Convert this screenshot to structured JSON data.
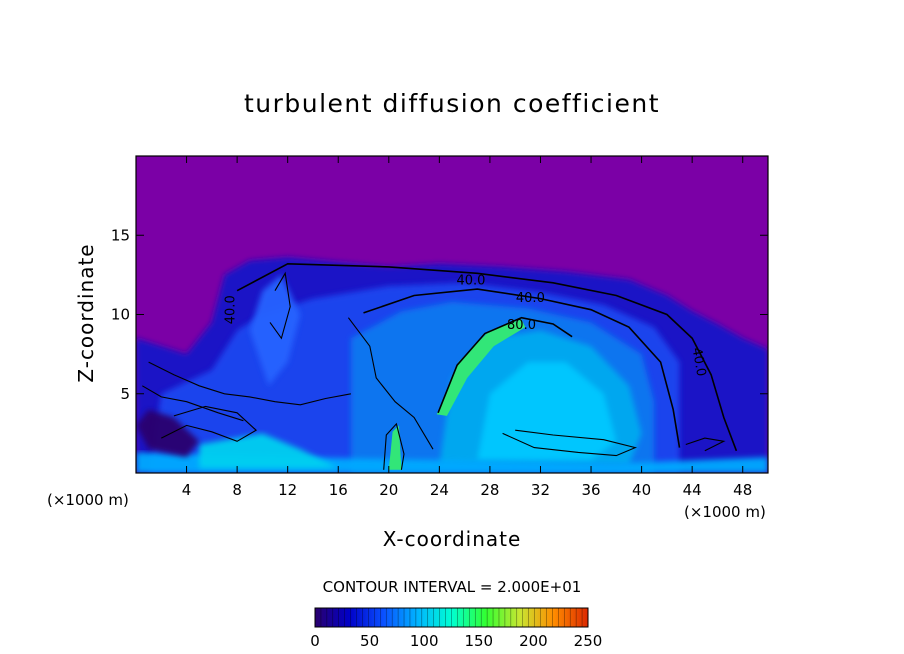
{
  "chart_data": {
    "type": "heatmap",
    "title": "turbulent diffusion coefficient",
    "xlabel": "X-coordinate",
    "ylabel": "Z-coordinate",
    "x_unit_left": "(×1000 m)",
    "x_unit_right": "(×1000 m)",
    "xlim": [
      0,
      50
    ],
    "ylim": [
      0,
      20
    ],
    "x_ticks": [
      4,
      8,
      12,
      16,
      20,
      24,
      28,
      32,
      36,
      40,
      44,
      48
    ],
    "y_ticks": [
      5,
      10,
      15
    ],
    "contour_interval_text": "CONTOUR INTERVAL = 2.000E+01",
    "contour_labels": [
      {
        "text": "40.0",
        "x": 26.5,
        "z": 12.1
      },
      {
        "text": "40.0",
        "x": 31.2,
        "z": 11.0
      },
      {
        "text": "80.0",
        "x": 30.5,
        "z": 9.3
      },
      {
        "text": "40.0",
        "x": 44.5,
        "z": 7.0
      },
      {
        "text": "40.0",
        "x": 7.5,
        "z": 10.3
      }
    ],
    "colorbar": {
      "min": 0,
      "max": 250,
      "tick_values": [
        0,
        50,
        100,
        150,
        200,
        250
      ],
      "tick_labels": [
        "0",
        "50",
        "100",
        "150",
        "200",
        "250"
      ],
      "colors": [
        "#2a006e",
        "#0000c8",
        "#0a50ff",
        "#00b4ff",
        "#00ffd2",
        "#32ff32",
        "#c8e632",
        "#ff8c00",
        "#dc2800"
      ]
    },
    "background_color": "#7b00a6"
  }
}
